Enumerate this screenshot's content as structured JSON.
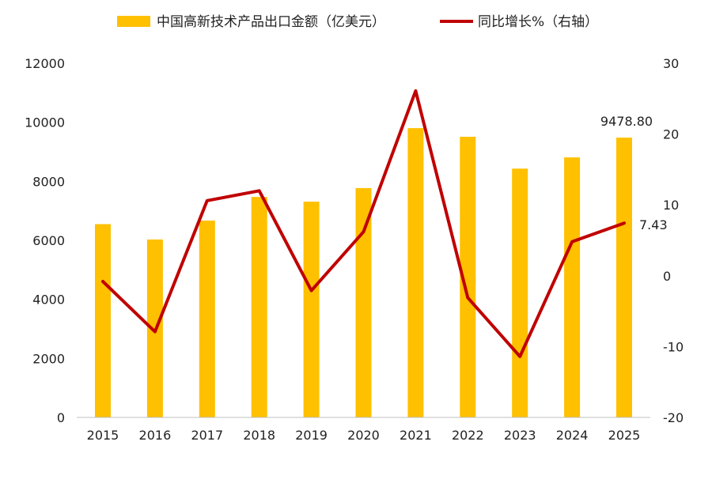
{
  "chart_data": {
    "type": "bar",
    "title": "",
    "categories": [
      "2015",
      "2016",
      "2017",
      "2018",
      "2019",
      "2020",
      "2021",
      "2022",
      "2023",
      "2024",
      "2025"
    ],
    "series": [
      {
        "name": "中国高新技术产品出口金额（亿美元）",
        "type": "bar",
        "axis": "left",
        "color": "#FFC000",
        "values": [
          6550,
          6030,
          6670,
          7470,
          7310,
          7770,
          9800,
          9510,
          8430,
          8810,
          9478.8
        ]
      },
      {
        "name": "同比增长%（右轴）",
        "type": "line",
        "axis": "right",
        "color": "#C00000",
        "values": [
          -0.8,
          -7.9,
          10.6,
          12.0,
          -2.1,
          6.2,
          26.1,
          -3.1,
          -11.4,
          4.8,
          7.43
        ]
      }
    ],
    "left_axis": {
      "min": 0,
      "max": 12000,
      "ticks": [
        "0",
        "2000",
        "4000",
        "6000",
        "8000",
        "10000",
        "12000"
      ]
    },
    "right_axis": {
      "min": -20,
      "max": 30,
      "ticks": [
        "-20",
        "-10",
        "0",
        "10",
        "20",
        "30"
      ]
    },
    "data_labels": {
      "bar_2025": "9478.80",
      "line_2025": "7.43"
    },
    "legend_position": "top",
    "grid": false
  }
}
